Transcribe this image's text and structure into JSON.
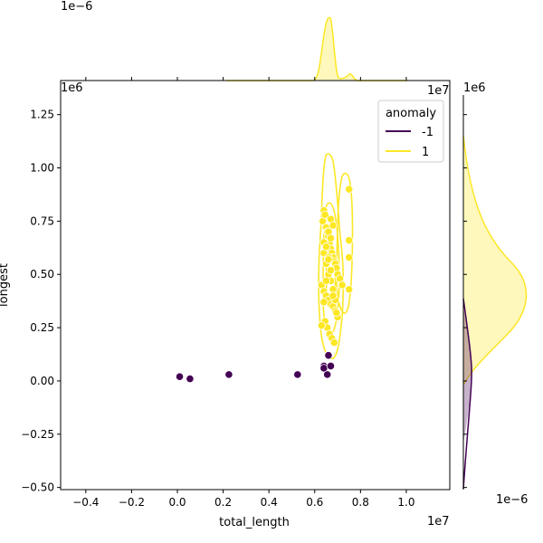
{
  "chart_data": {
    "type": "scatter",
    "subtype": "jointplot",
    "xlabel": "total_length",
    "ylabel": "longest",
    "x_offset_label": "1e7",
    "y_offset_label": "1e6",
    "top_marginal_offset_label": "1e−6",
    "right_marginal_offset_label": "1e−6",
    "x_ticks": [
      -0.4,
      -0.2,
      0.0,
      0.2,
      0.4,
      0.6,
      0.8,
      1.0
    ],
    "x_tick_labels": [
      "−0.4",
      "−0.2",
      "0.0",
      "0.2",
      "0.4",
      "0.6",
      "0.8",
      "1.0"
    ],
    "y_ticks": [
      -0.5,
      -0.25,
      0.0,
      0.25,
      0.5,
      0.75,
      1.0,
      1.25
    ],
    "y_tick_labels": [
      "−0.50",
      "−0.25",
      "0.00",
      "0.25",
      "0.50",
      "0.75",
      "1.00",
      "1.25"
    ],
    "xlim": [
      -0.51,
      1.19
    ],
    "ylim": [
      -0.51,
      1.41
    ],
    "legend": {
      "title": "anomaly",
      "position": "top-right",
      "entries": [
        {
          "label": "-1",
          "color": "#440154"
        },
        {
          "label": "1",
          "color": "#fde725"
        }
      ]
    },
    "series": [
      {
        "name": "-1",
        "color": "#440154",
        "x": [
          0.01,
          0.055,
          0.225,
          0.525,
          0.64,
          0.64,
          0.655,
          0.66,
          0.67
        ],
        "y": [
          0.02,
          0.01,
          0.03,
          0.03,
          0.07,
          0.06,
          0.03,
          0.12,
          0.07
        ]
      },
      {
        "name": "1",
        "color": "#fde725",
        "x": [
          0.635,
          0.64,
          0.645,
          0.65,
          0.655,
          0.66,
          0.665,
          0.67,
          0.675,
          0.68,
          0.685,
          0.69,
          0.695,
          0.7,
          0.71,
          0.72,
          0.63,
          0.64,
          0.65,
          0.66,
          0.67,
          0.68,
          0.69,
          0.7,
          0.645,
          0.655,
          0.665,
          0.675,
          0.685,
          0.695,
          0.64,
          0.65,
          0.66,
          0.67,
          0.68,
          0.69,
          0.64,
          0.65,
          0.66,
          0.67,
          0.68,
          0.66,
          0.67,
          0.68,
          0.75,
          0.75,
          0.75,
          0.75,
          0.63,
          0.64,
          0.65,
          0.66,
          0.67
        ],
        "y": [
          0.75,
          0.8,
          0.78,
          0.72,
          0.7,
          0.68,
          0.65,
          0.62,
          0.6,
          0.58,
          0.56,
          0.55,
          0.53,
          0.5,
          0.48,
          0.45,
          0.45,
          0.42,
          0.4,
          0.38,
          0.36,
          0.35,
          0.33,
          0.3,
          0.28,
          0.25,
          0.22,
          0.2,
          0.18,
          0.32,
          0.6,
          0.55,
          0.5,
          0.47,
          0.43,
          0.38,
          0.65,
          0.63,
          0.58,
          0.52,
          0.4,
          0.7,
          0.76,
          0.73,
          0.9,
          0.66,
          0.58,
          0.43,
          0.26,
          0.37,
          0.47,
          0.57,
          0.67
        ]
      }
    ],
    "grid": false
  }
}
